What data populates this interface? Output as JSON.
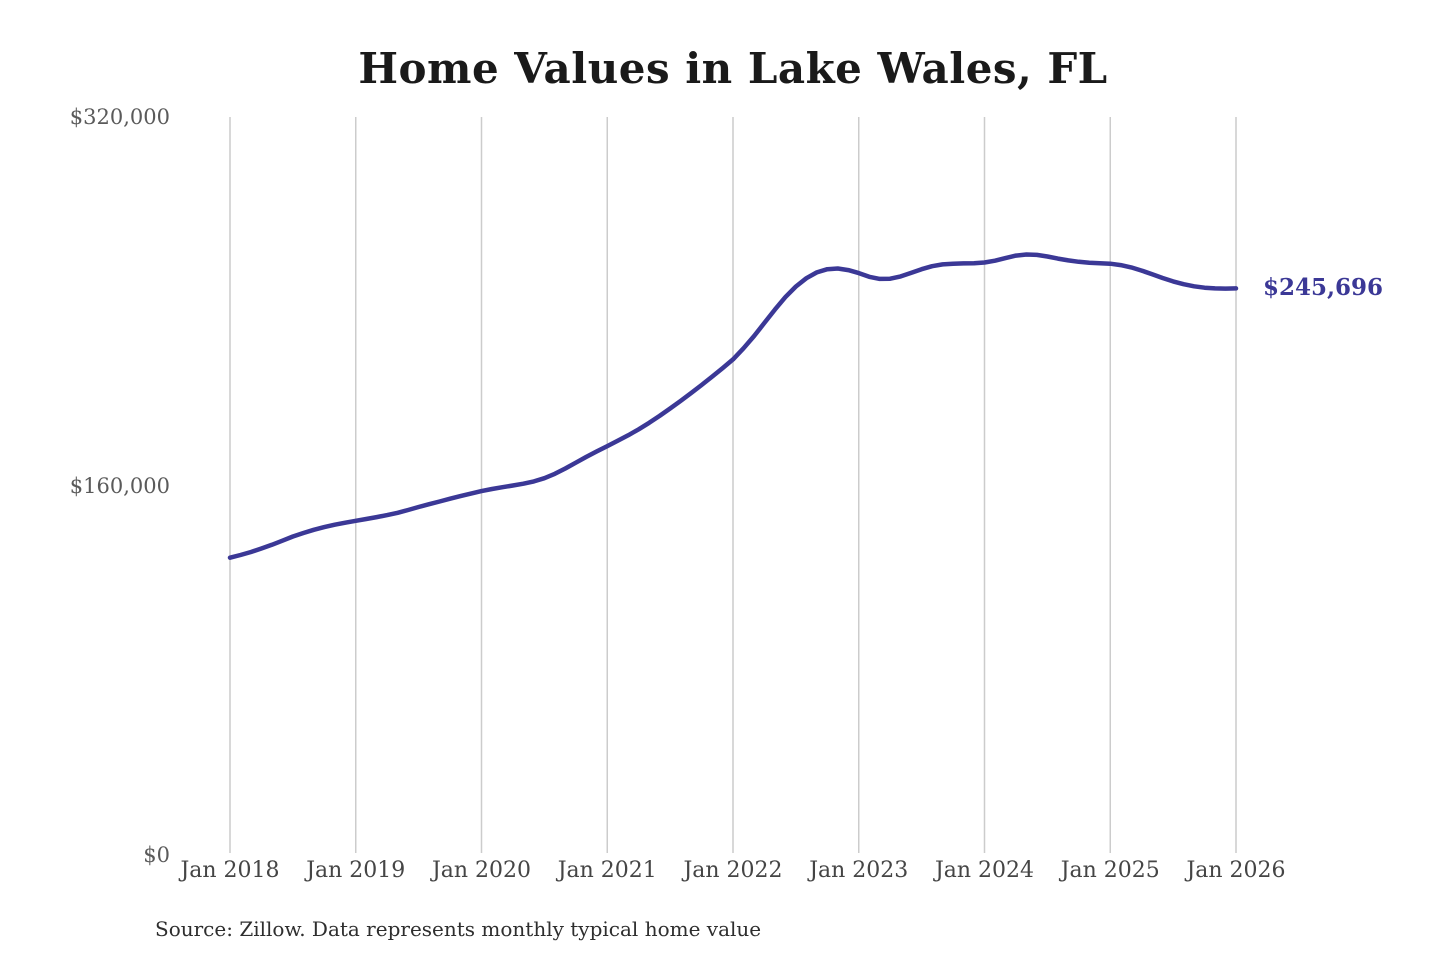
{
  "title": "Home Values in Lake Wales, FL",
  "source_note": "Source: Zillow. Data represents monthly typical home value",
  "latest_value_label": "$245,696",
  "colors": {
    "line": "#3b3896",
    "grid": "#cccccc",
    "y_label": "#5a5a5a",
    "x_label": "#454545",
    "title": "#1a1a1a",
    "source": "#2e2e2e",
    "end_label": "#3b3896",
    "background": "#ffffff"
  },
  "chart_data": {
    "type": "line",
    "title": "Home Values in Lake Wales, FL",
    "xlabel": "",
    "ylabel": "",
    "ylim": [
      0,
      320000
    ],
    "y_tick_values": [
      0,
      160000,
      320000
    ],
    "y_tick_labels": [
      "$0",
      "$160,000",
      "$320,000"
    ],
    "x_tick_labels": [
      "Jan 2018",
      "Jan 2019",
      "Jan 2020",
      "Jan 2021",
      "Jan 2022",
      "Jan 2023",
      "Jan 2024",
      "Jan 2025",
      "Jan 2026"
    ],
    "grid": "vertical-only",
    "legend": "none",
    "end_annotation": "$245,696",
    "frequency": "monthly",
    "x_start": "2018-01",
    "x_end": "2026-01",
    "series": [
      {
        "name": "Typical home value",
        "values": [
          128900,
          130100,
          131400,
          132900,
          134500,
          136300,
          138100,
          139600,
          141000,
          142200,
          143200,
          144100,
          144900,
          145700,
          146500,
          147400,
          148400,
          149600,
          150900,
          152100,
          153300,
          154500,
          155600,
          156700,
          157800,
          158700,
          159500,
          160200,
          161000,
          162000,
          163400,
          165300,
          167600,
          170100,
          172600,
          175000,
          177300,
          179600,
          182000,
          184600,
          187400,
          190400,
          193600,
          196900,
          200300,
          203800,
          207400,
          211100,
          214900,
          219700,
          225000,
          230700,
          236500,
          241900,
          246500,
          250100,
          252600,
          254000,
          254300,
          253600,
          252300,
          250700,
          249800,
          249900,
          250900,
          252400,
          254000,
          255300,
          256100,
          256400,
          256500,
          256600,
          256900,
          257700,
          258800,
          259900,
          260400,
          260200,
          259500,
          258600,
          257800,
          257200,
          256800,
          256600,
          256400,
          255800,
          254800,
          253400,
          251800,
          250200,
          248700,
          247500,
          246600,
          246000,
          245700,
          245600,
          245696
        ]
      }
    ]
  }
}
